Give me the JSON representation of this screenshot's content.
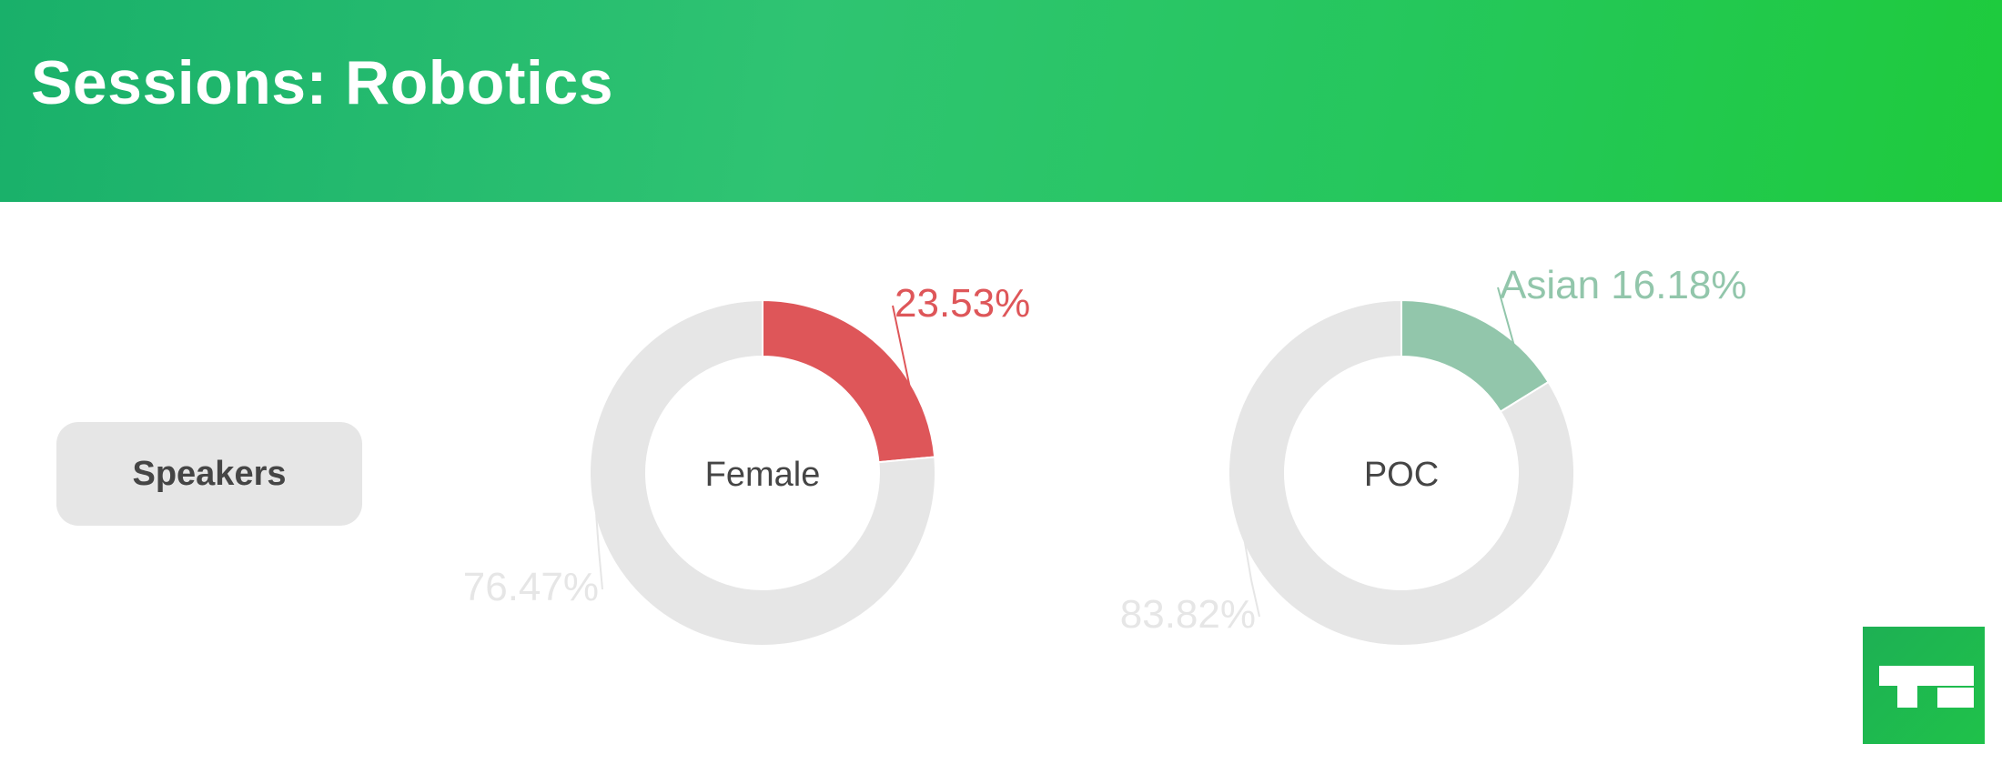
{
  "header": {
    "title": "Sessions: Robotics"
  },
  "category_label": "Speakers",
  "chart_data": [
    {
      "type": "pie",
      "center_label": "Female",
      "slices": [
        {
          "label": "",
          "value": 23.53,
          "value_label": "23.53%",
          "color": "#de5659"
        },
        {
          "label": "",
          "value": 76.47,
          "value_label": "76.47%",
          "color": "#e6e6e6"
        }
      ],
      "label_colors": [
        "#de5659",
        "#e6e6e6"
      ]
    },
    {
      "type": "pie",
      "center_label": "POC",
      "slices": [
        {
          "label": "Asian",
          "value": 16.18,
          "value_label": "Asian 16.18%",
          "color": "#92c6ab"
        },
        {
          "label": "",
          "value": 83.82,
          "value_label": "83.82%",
          "color": "#e6e6e6"
        }
      ],
      "label_colors": [
        "#92c6ab",
        "#e6e6e6"
      ]
    }
  ],
  "logo": {
    "icon": "techcrunch-logo-icon"
  }
}
